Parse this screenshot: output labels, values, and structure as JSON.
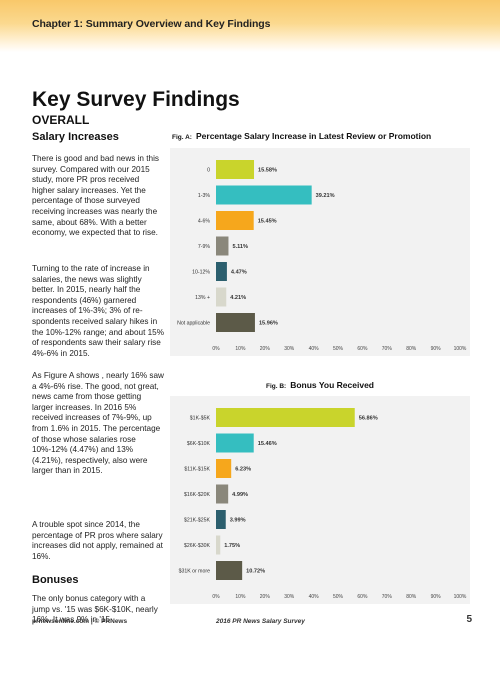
{
  "header": {
    "chapter": "Chapter 1: Summary Overview and Key Findings"
  },
  "title": "Key Survey Findings",
  "section": "OVERALL",
  "salary": {
    "heading": "Salary Increases",
    "p1": "There is good and bad news in this survey. Compared with our 2015 study, more PR pros received higher salary increases. Yet the percentage of those surveyed receiving increases was nearly the same, about 68%.  With a better economy, we expected that to rise.",
    "p2": "Turning to the rate of increase in salaries, the news was slightly better. In 2015, nearly half the respondents (46%) garnered increases of 1%-3%; 3% of re-spondents received salary hikes in the 10%-12% range; and about 15% of respondents saw their salary rise 4%-6% in 2015.",
    "p3": "As Figure A shows , nearly 16% saw a 4%-6% rise. The good, not great, news came from those getting larger increases. In 2016 5% received increases of 7%-9%, up from 1.6% in 2015. The percentage of those whose salaries rose 10%-12% (4.47%) and 13% (4.21%), respectively, also were larger than in 2015.",
    "p4": "A trouble spot since 2014, the percentage of PR pros where salary increases did not apply, remained at 16%."
  },
  "bonuses": {
    "heading": "Bonuses",
    "p1": " The only bonus category with a jump vs. '15 was $6K-$10K, nearly 16%. It was 9% in '15."
  },
  "footer": {
    "left": "prnewsonline.com | © PRNews",
    "mid": "2016 PR News Salary Survey",
    "page": "5"
  },
  "chart_data": [
    {
      "type": "bar",
      "orientation": "horizontal",
      "fig": "Fig. A:",
      "title": "Percentage Salary Increase in Latest Review or Promotion",
      "categories": [
        "0",
        "1-3%",
        "4-6%",
        "7-9%",
        "10-12%",
        "13% +",
        "Not applicable"
      ],
      "values": [
        15.58,
        39.21,
        15.45,
        5.11,
        4.47,
        4.21,
        15.96
      ],
      "value_labels": [
        "15.58%",
        "39.21%",
        "15.45%",
        "5.11%",
        "4.47%",
        "4.21%",
        "15.96%"
      ],
      "colors": [
        "#c9d42c",
        "#35bec0",
        "#f6a71c",
        "#8a877b",
        "#2c5f6e",
        "#d8d8cc",
        "#5c5a48"
      ],
      "xlim": [
        0,
        100
      ],
      "ticks": [
        "0%",
        "10%",
        "20%",
        "30%",
        "40%",
        "50%",
        "60%",
        "70%",
        "80%",
        "90%",
        "100%"
      ]
    },
    {
      "type": "bar",
      "orientation": "horizontal",
      "fig": "Fig. B:",
      "title": "Bonus You Received",
      "categories": [
        "$1K-$5K",
        "$6K-$10K",
        "$11K-$15K",
        "$16K-$20K",
        "$21K-$25K",
        "$26K-$30K",
        "$31K or more"
      ],
      "values": [
        56.86,
        15.46,
        6.23,
        4.99,
        3.99,
        1.75,
        10.72
      ],
      "value_labels": [
        "56.86%",
        "15.46%",
        "6.23%",
        "4.99%",
        "3.99%",
        "1.75%",
        "10.72%"
      ],
      "colors": [
        "#c9d42c",
        "#35bec0",
        "#f6a71c",
        "#8a877b",
        "#2c5f6e",
        "#d8d8cc",
        "#5c5a48"
      ],
      "xlim": [
        0,
        100
      ],
      "ticks": [
        "0%",
        "10%",
        "20%",
        "30%",
        "40%",
        "50%",
        "60%",
        "70%",
        "80%",
        "90%",
        "100%"
      ]
    }
  ]
}
